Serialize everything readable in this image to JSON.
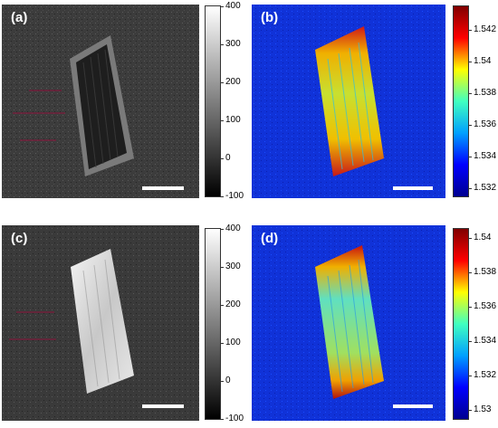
{
  "panels": [
    {
      "label": "(a)"
    },
    {
      "label": "(b)"
    },
    {
      "label": "(c)"
    },
    {
      "label": "(d)"
    }
  ],
  "colorbars": {
    "a": {
      "ticks": [
        "400",
        "300",
        "200",
        "100",
        "0",
        "-100"
      ],
      "min": -100,
      "max": 400
    },
    "b": {
      "ticks": [
        "1.542",
        "1.54",
        "1.538",
        "1.536",
        "1.534",
        "1.532"
      ],
      "min": 1.5315,
      "max": 1.5435
    },
    "c": {
      "ticks": [
        "400",
        "300",
        "200",
        "100",
        "0",
        "-100"
      ],
      "min": -100,
      "max": 400
    },
    "d": {
      "ticks": [
        "1.54",
        "1.538",
        "1.536",
        "1.534",
        "1.532",
        "1.53"
      ],
      "min": 1.5295,
      "max": 1.5405
    }
  },
  "colors": {
    "jet_background": "#1032d8",
    "gray_background": "#3a3a3a",
    "scale_bar": "#ffffff"
  }
}
